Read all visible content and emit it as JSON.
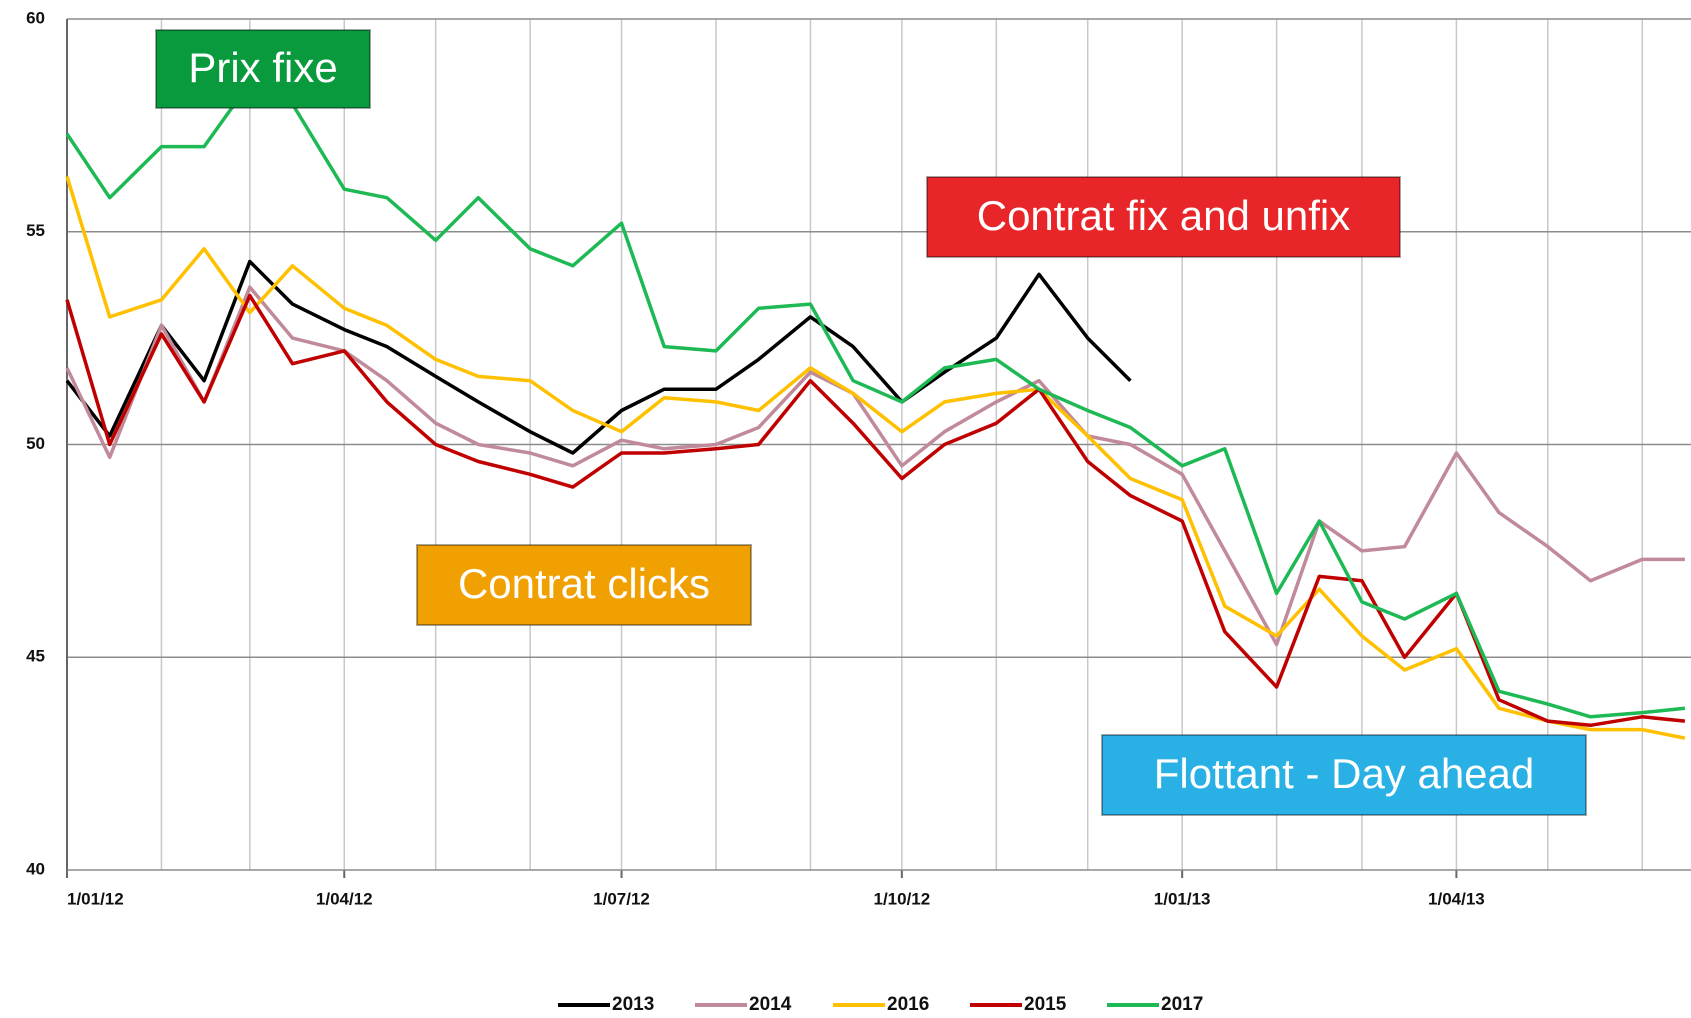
{
  "chart_data": {
    "type": "line",
    "x": [
      "2012-01-01",
      "2012-01-15",
      "2012-02-01",
      "2012-02-15",
      "2012-03-01",
      "2012-03-15",
      "2012-04-01",
      "2012-04-15",
      "2012-05-01",
      "2012-05-15",
      "2012-06-01",
      "2012-06-15",
      "2012-07-01",
      "2012-07-15",
      "2012-08-01",
      "2012-08-15",
      "2012-09-01",
      "2012-09-15",
      "2012-10-01",
      "2012-10-15",
      "2012-11-01",
      "2012-11-15",
      "2012-12-01",
      "2012-12-15",
      "2013-01-01",
      "2013-01-15",
      "2013-02-01",
      "2013-02-15",
      "2013-03-01",
      "2013-03-15",
      "2013-04-01",
      "2013-04-15",
      "2013-05-01",
      "2013-05-15",
      "2013-06-01",
      "2013-06-15"
    ],
    "series": [
      {
        "name": "2013",
        "color": "#000000",
        "values": [
          51.5,
          50.2,
          52.8,
          51.5,
          54.3,
          53.3,
          52.7,
          52.3,
          51.6,
          51.0,
          50.3,
          49.8,
          50.8,
          51.3,
          51.3,
          52.0,
          53.0,
          52.3,
          51.0,
          51.7,
          52.5,
          54.0,
          52.5,
          51.5,
          null,
          null,
          null,
          null,
          null,
          null,
          null,
          null,
          null,
          null,
          null,
          null
        ]
      },
      {
        "name": "2014",
        "color": "#c08a9a",
        "values": [
          51.8,
          49.7,
          52.8,
          51.0,
          53.7,
          52.5,
          52.2,
          51.5,
          50.5,
          50.0,
          49.8,
          49.5,
          50.1,
          49.9,
          50.0,
          50.4,
          51.7,
          51.2,
          49.5,
          50.3,
          51.0,
          51.5,
          50.2,
          50.0,
          49.3,
          47.5,
          45.3,
          48.2,
          47.5,
          47.6,
          49.8,
          48.4,
          47.6,
          46.8,
          47.3,
          47.3
        ]
      },
      {
        "name": "2016",
        "color": "#ffc000",
        "values": [
          56.3,
          53.0,
          53.4,
          54.6,
          53.1,
          54.2,
          53.2,
          52.8,
          52.0,
          51.6,
          51.5,
          50.8,
          50.3,
          51.1,
          51.0,
          50.8,
          51.8,
          51.2,
          50.3,
          51.0,
          51.2,
          51.3,
          50.2,
          49.2,
          48.7,
          46.2,
          45.5,
          46.6,
          45.5,
          44.7,
          45.2,
          43.8,
          43.5,
          43.3,
          43.3,
          43.1
        ]
      },
      {
        "name": "2015",
        "color": "#c00000",
        "values": [
          53.4,
          50.0,
          52.6,
          51.0,
          53.5,
          51.9,
          52.2,
          51.0,
          50.0,
          49.6,
          49.3,
          49.0,
          49.8,
          49.8,
          49.9,
          50.0,
          51.5,
          50.5,
          49.2,
          50.0,
          50.5,
          51.3,
          49.6,
          48.8,
          48.2,
          45.6,
          44.3,
          46.9,
          46.8,
          45.0,
          46.5,
          44.0,
          43.5,
          43.4,
          43.6,
          43.5
        ]
      },
      {
        "name": "2017",
        "color": "#1db954",
        "values": [
          57.3,
          55.8,
          57.0,
          57.0,
          58.5,
          58.0,
          56.0,
          55.8,
          54.8,
          55.8,
          54.6,
          54.2,
          55.2,
          52.3,
          52.2,
          53.2,
          53.3,
          51.5,
          51.0,
          51.8,
          52.0,
          51.3,
          50.8,
          50.4,
          49.5,
          49.9,
          46.5,
          48.2,
          46.3,
          45.9,
          46.5,
          44.2,
          43.9,
          43.6,
          43.7,
          43.8
        ]
      }
    ],
    "xlim": [
      "2012-01-01",
      "2013-06-17"
    ],
    "xticks": [
      {
        "value": "2012-01-01",
        "label": "1/01/12"
      },
      {
        "value": "2012-04-01",
        "label": "1/04/12"
      },
      {
        "value": "2012-07-01",
        "label": "1/07/12"
      },
      {
        "value": "2012-10-01",
        "label": "1/10/12"
      },
      {
        "value": "2013-01-01",
        "label": "1/01/13"
      },
      {
        "value": "2013-04-01",
        "label": "1/04/13"
      }
    ],
    "xgrid": [
      "2012-02-01",
      "2012-03-01",
      "2012-05-01",
      "2012-06-01",
      "2012-08-01",
      "2012-09-01",
      "2012-11-01",
      "2012-12-01",
      "2013-02-01",
      "2013-03-01",
      "2013-05-01",
      "2013-06-01"
    ],
    "ylim": [
      40,
      60
    ],
    "yticks": [
      40,
      45,
      50,
      55,
      60
    ],
    "grid": true,
    "legend": "bottom",
    "annotations": [
      {
        "text": "Prix fixe",
        "color": "#0a9a3e"
      },
      {
        "text": "Contrat fix and unfix",
        "color": "#e8262a"
      },
      {
        "text": "Contrat clicks",
        "color": "#f0a000"
      },
      {
        "text": "Flottant - Day ahead",
        "color": "#29b0e5"
      }
    ]
  }
}
